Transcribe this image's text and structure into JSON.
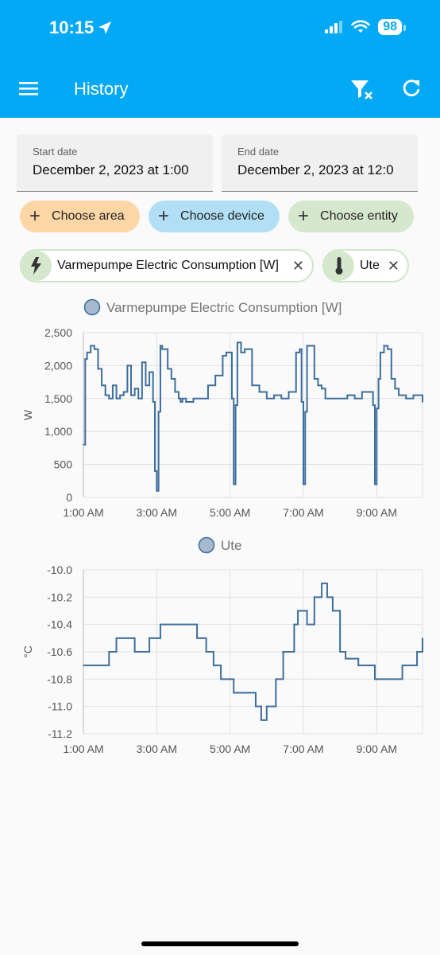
{
  "status_bar": {
    "time": "10:15",
    "battery": "98"
  },
  "header": {
    "title": "History"
  },
  "start_date": {
    "label": "Start date",
    "value": "December 2, 2023 at 1:00"
  },
  "end_date": {
    "label": "End date",
    "value": "December 2, 2023 at 12:0"
  },
  "pickers": {
    "area": "Choose area",
    "device": "Choose device",
    "entity": "Choose entity"
  },
  "selected": [
    {
      "label": "Varmepumpe Electric Consumption [W]"
    },
    {
      "label": "Ute"
    }
  ],
  "colors": {
    "accent": "#03a9f4",
    "series": "#3c6e9c",
    "area_chip": "#fdd6a6",
    "device_chip": "#b2dff5",
    "entity_chip": "#d5e8cd"
  },
  "chart_data": [
    {
      "type": "line",
      "title": "",
      "legend": [
        "Varmepumpe Electric Consumption [W]"
      ],
      "ylabel": "W",
      "xlabel": "",
      "ylim": [
        0,
        2500
      ],
      "yticks": [
        "0",
        "500",
        "1,000",
        "1,500",
        "2,000",
        "2,500"
      ],
      "xticks": [
        "1:00 AM",
        "3:00 AM",
        "5:00 AM",
        "7:00 AM",
        "9:00 AM"
      ],
      "xrange_hours": [
        1.0,
        10.25
      ],
      "series": [
        {
          "name": "Varmepumpe Electric Consumption [W]",
          "x": [
            1.0,
            1.05,
            1.1,
            1.2,
            1.3,
            1.4,
            1.5,
            1.6,
            1.7,
            1.8,
            1.9,
            2.0,
            2.1,
            2.2,
            2.3,
            2.4,
            2.5,
            2.6,
            2.7,
            2.8,
            2.9,
            2.95,
            3.0,
            3.05,
            3.1,
            3.15,
            3.2,
            3.3,
            3.4,
            3.5,
            3.6,
            3.65,
            3.7,
            3.8,
            4.0,
            4.2,
            4.4,
            4.6,
            4.8,
            4.9,
            5.0,
            5.05,
            5.1,
            5.15,
            5.2,
            5.3,
            5.4,
            5.5,
            5.6,
            5.8,
            6.0,
            6.2,
            6.4,
            6.6,
            6.8,
            6.9,
            6.95,
            7.0,
            7.05,
            7.1,
            7.2,
            7.3,
            7.4,
            7.5,
            7.6,
            7.8,
            8.0,
            8.2,
            8.4,
            8.6,
            8.8,
            8.9,
            8.95,
            9.0,
            9.05,
            9.1,
            9.2,
            9.3,
            9.4,
            9.5,
            9.6,
            9.8,
            10.0,
            10.25
          ],
          "y": [
            800,
            2100,
            2200,
            2300,
            2250,
            1950,
            1700,
            1550,
            1500,
            1700,
            1500,
            1550,
            1600,
            2000,
            1550,
            1650,
            1500,
            2050,
            1700,
            1900,
            1450,
            400,
            100,
            1300,
            2300,
            2250,
            2250,
            1950,
            1800,
            1600,
            1500,
            1450,
            1500,
            1450,
            1500,
            1500,
            1700,
            1850,
            2150,
            2200,
            2200,
            1500,
            200,
            1400,
            2350,
            2200,
            2250,
            2250,
            1700,
            1600,
            1500,
            1550,
            1500,
            1600,
            2200,
            2250,
            1450,
            200,
            1300,
            2300,
            2300,
            1800,
            1700,
            1650,
            1500,
            1500,
            1500,
            1550,
            1500,
            1600,
            1600,
            1400,
            200,
            1350,
            1800,
            2200,
            2300,
            2250,
            1800,
            1650,
            1550,
            1500,
            1550,
            1450
          ]
        }
      ]
    },
    {
      "type": "line",
      "title": "",
      "legend": [
        "Ute"
      ],
      "ylabel": "°C",
      "xlabel": "",
      "ylim": [
        -11.2,
        -10.0
      ],
      "yticks": [
        "-10.0",
        "-10.2",
        "-10.4",
        "-10.6",
        "-10.8",
        "-11.0",
        "-11.2"
      ],
      "xticks": [
        "1:00 AM",
        "3:00 AM",
        "5:00 AM",
        "7:00 AM",
        "9:00 AM"
      ],
      "xrange_hours": [
        1.0,
        10.25
      ],
      "series": [
        {
          "name": "Ute",
          "x": [
            1.0,
            1.7,
            1.9,
            2.4,
            2.8,
            3.1,
            4.1,
            4.35,
            4.55,
            4.75,
            5.1,
            5.7,
            5.85,
            6.0,
            6.25,
            6.45,
            6.75,
            6.85,
            7.1,
            7.3,
            7.5,
            7.65,
            7.8,
            8.0,
            8.15,
            8.5,
            8.95,
            9.7,
            10.1,
            10.25
          ],
          "y": [
            -10.7,
            -10.6,
            -10.5,
            -10.6,
            -10.5,
            -10.4,
            -10.5,
            -10.6,
            -10.7,
            -10.8,
            -10.9,
            -11.0,
            -11.1,
            -11.0,
            -10.8,
            -10.6,
            -10.4,
            -10.3,
            -10.4,
            -10.2,
            -10.1,
            -10.2,
            -10.3,
            -10.6,
            -10.65,
            -10.7,
            -10.8,
            -10.7,
            -10.6,
            -10.5
          ]
        }
      ]
    }
  ]
}
